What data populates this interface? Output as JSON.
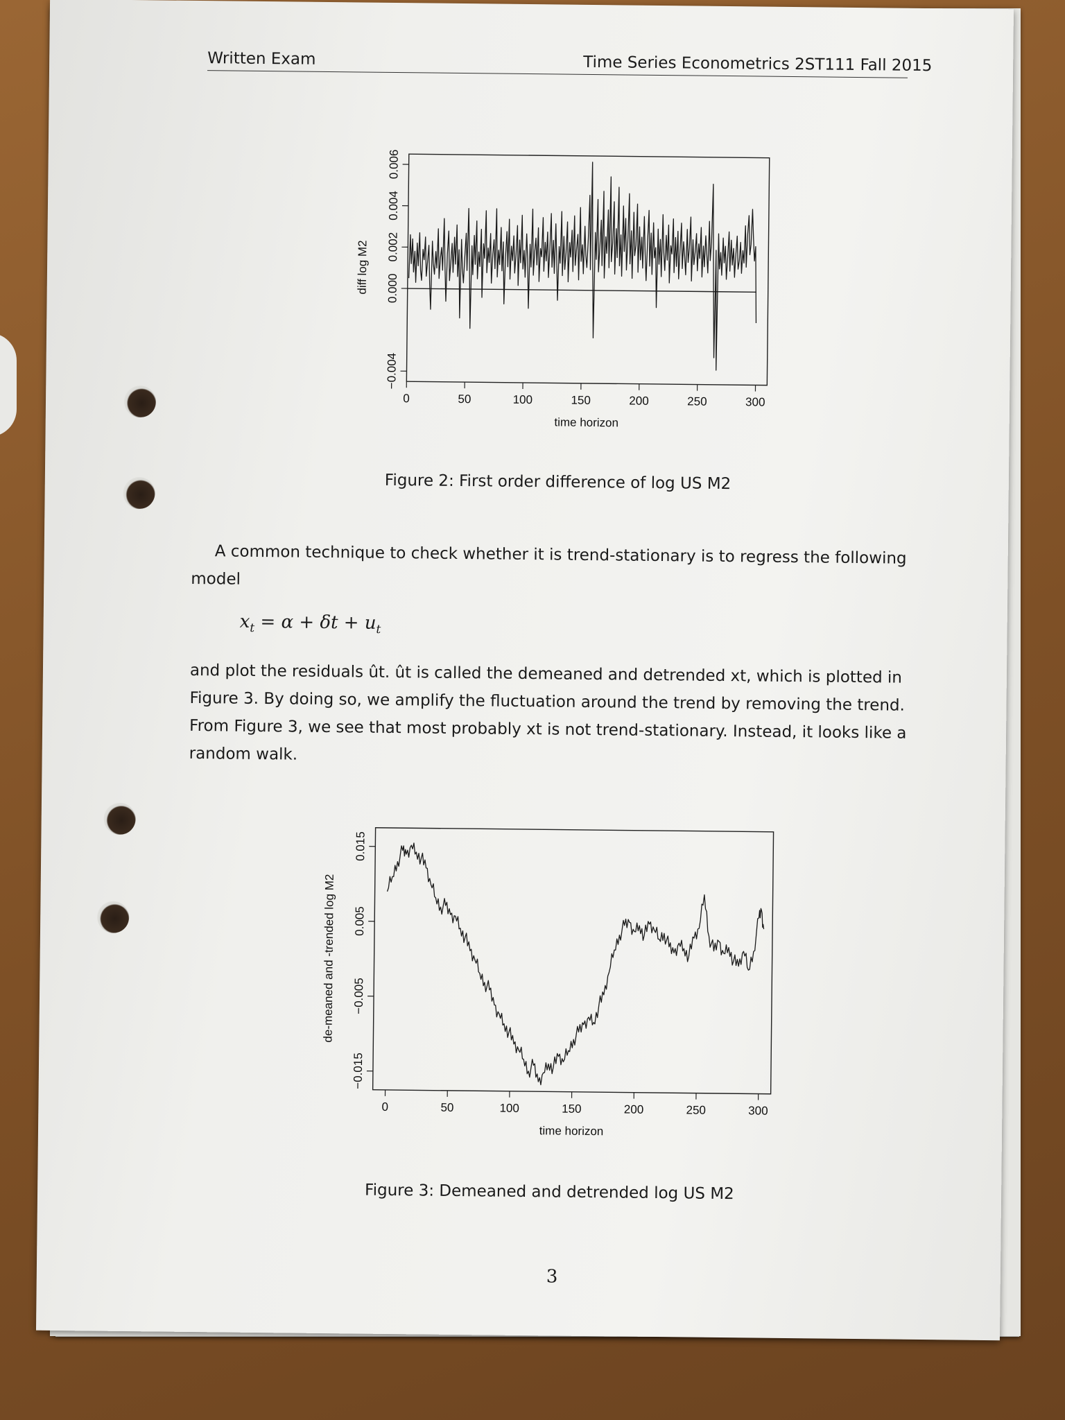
{
  "header": {
    "left": "Written Exam",
    "right": "Time Series Econometrics 2ST111 Fall 2015"
  },
  "figure2": {
    "caption": "Figure 2: First order difference of log US M2",
    "chart_data": {
      "type": "line",
      "xlabel": "time horizon",
      "ylabel": "diff log M2",
      "xlim": [
        0,
        310
      ],
      "ylim": [
        -0.0045,
        0.0065
      ],
      "x_ticks": [
        "0",
        "50",
        "100",
        "150",
        "200",
        "250",
        "300"
      ],
      "y_ticks": [
        "-0.004",
        "0.000",
        "0.002",
        "0.004",
        "0.006"
      ],
      "grid": false,
      "reference_line_y": 0,
      "series": [
        {
          "n": 300,
          "values": [
            0.0005,
            0.0026,
            0.0012,
            0.0024,
            0.0008,
            0.0018,
            0.0003,
            0.0022,
            0.0011,
            0.0027,
            0.0009,
            0.0004,
            0.0019,
            0.0014,
            0.0025,
            0.0006,
            0.0013,
            0.0021,
            0.0002,
            -0.001,
            0.0023,
            0.0012,
            0.0007,
            0.0018,
            0.001,
            0.0029,
            0.0005,
            0.0015,
            0.002,
            0.0009,
            0.0034,
            0.0011,
            -0.0006,
            0.0017,
            0.0028,
            0.0004,
            0.0013,
            0.0022,
            0.0008,
            0.0025,
            0.0012,
            0.0031,
            0.0006,
            0.0019,
            -0.0014,
            0.0024,
            0.001,
            0.0003,
            0.0016,
            0.0027,
            0.0009,
            0.0039,
            0.0014,
            -0.0019,
            0.0021,
            0.0007,
            0.0026,
            0.0012,
            0.0033,
            0.0005,
            0.0018,
            0.0011,
            0.0029,
            -0.0004,
            0.0022,
            0.0015,
            0.0038,
            0.0008,
            0.002,
            0.0013,
            0.0027,
            0.0003,
            0.0017,
            0.0024,
            0.001,
            0.0039,
            0.0006,
            0.0019,
            0.0012,
            0.003,
            0.0009,
            0.0023,
            -0.0007,
            0.0016,
            0.0028,
            0.0011,
            0.0034,
            0.0005,
            0.0021,
            0.0014,
            0.0026,
            0.0008,
            0.0017,
            0.0031,
            0.0002,
            0.0024,
            0.0013,
            0.0036,
            0.001,
            0.0019,
            0.0006,
            0.0027,
            0.0015,
            -0.0009,
            0.0022,
            0.0011,
            0.0039,
            0.0007,
            0.0018,
            0.0025,
            0.0012,
            0.003,
            0.0004,
            0.002,
            0.0016,
            0.0035,
            0.0009,
            0.0023,
            0.0014,
            0.0028,
            0.0006,
            0.0019,
            0.0037,
            0.0011,
            0.0024,
            0.0008,
            0.0032,
            0.0015,
            -0.0005,
            0.0021,
            0.0013,
            0.0038,
            0.0007,
            0.0026,
            0.001,
            0.0018,
            0.0033,
            0.0004,
            0.0023,
            0.0016,
            0.0029,
            0.0009,
            0.0036,
            0.0012,
            0.002,
            0.0027,
            0.0005,
            0.004,
            0.0014,
            0.0022,
            0.0008,
            0.0031,
            0.0017,
            0.0011,
            0.0025,
            0.0046,
            0.001,
            0.0062,
            0.0013,
            -0.0023,
            0.0028,
            0.0015,
            0.0044,
            0.0009,
            0.0021,
            0.0034,
            0.0012,
            0.0048,
            0.0006,
            0.0026,
            0.0018,
            0.0039,
            0.0011,
            0.0055,
            0.0014,
            0.0023,
            0.0043,
            0.0008,
            0.003,
            0.0016,
            0.005,
            0.0012,
            0.0027,
            0.0007,
            0.0041,
            0.0019,
            0.0035,
            0.001,
            0.0024,
            0.0047,
            0.0013,
            0.0029,
            0.0006,
            0.0038,
            0.0017,
            0.0022,
            0.0042,
            0.0009,
            0.0031,
            0.0015,
            0.0026,
            0.0011,
            0.0036,
            0.0018,
            0.0005,
            0.0024,
            0.0039,
            0.0012,
            0.0028,
            0.0008,
            0.0033,
            0.0016,
            0.0021,
            -0.0008,
            0.003,
            0.0013,
            0.0025,
            0.0007,
            0.0037,
            0.0019,
            0.001,
            0.0027,
            0.0015,
            0.0032,
            0.0004,
            0.0022,
            0.0018,
            0.0035,
            0.0009,
            0.0026,
            0.0012,
            0.0029,
            0.0006,
            0.002,
            0.0033,
            0.0011,
            0.0024,
            0.0017,
            0.0008,
            0.003,
            0.0014,
            0.0021,
            0.0036,
            0.0005,
            0.0025,
            0.0013,
            0.0019,
            0.0028,
            0.001,
            0.0023,
            0.0016,
            0.0031,
            0.0007,
            0.0022,
            0.0012,
            0.0027,
            0.0018,
            0.0009,
            0.0034,
            0.0015,
            0.0024,
            0.0052,
            0.0004,
            -0.0032,
            0.002,
            -0.0038,
            0.0028,
            0.0011,
            0.0019,
            0.0008,
            0.0026,
            0.0014,
            0.0022,
            0.0006,
            0.0017,
            0.0029,
            0.001,
            0.0025,
            0.0013,
            0.0021,
            0.0007,
            0.0018,
            0.0027,
            0.0011,
            0.0015,
            0.0024,
            0.0009,
            0.002,
            0.0014,
            0.0032,
            0.0012,
            0.0028,
            0.0037,
            0.0018,
            0.0023,
            0.004,
            0.0026,
            0.0015,
            0.0022,
            -0.0015
          ]
        }
      ]
    }
  },
  "paragraph1": {
    "line1": "A common technique to check whether it is trend-stationary is to regress the following",
    "line2": "model"
  },
  "equation": "xt = α + δt + ut",
  "paragraph2": {
    "line1": "and plot the residuals ût.  ût is called the demeaned and detrended xt, which is plotted in",
    "line2": "Figure 3.  By doing so, we amplify the fluctuation around the trend by removing the trend.",
    "line3": "From Figure 3, we see that most probably xt is not trend-stationary.  Instead, it looks like a",
    "line4": "random walk."
  },
  "figure3": {
    "caption": "Figure 3: Demeaned and detrended log US M2",
    "chart_data": {
      "type": "line",
      "xlabel": "time horizon",
      "ylabel": "de-meaned and -trended log M2",
      "xlim": [
        -10,
        310
      ],
      "ylim": [
        -0.0175,
        0.0175
      ],
      "x_ticks": [
        "0",
        "50",
        "100",
        "150",
        "200",
        "250",
        "300"
      ],
      "y_ticks": [
        "-0.015",
        "-0.005",
        "0.005",
        "0.015"
      ],
      "grid": false,
      "keypoints": [
        [
          0,
          0.009
        ],
        [
          4,
          0.011
        ],
        [
          8,
          0.013
        ],
        [
          12,
          0.0145
        ],
        [
          15,
          0.014
        ],
        [
          19,
          0.0152
        ],
        [
          23,
          0.0143
        ],
        [
          27,
          0.0135
        ],
        [
          31,
          0.0122
        ],
        [
          35,
          0.01
        ],
        [
          39,
          0.0082
        ],
        [
          43,
          0.007
        ],
        [
          47,
          0.0072
        ],
        [
          51,
          0.006
        ],
        [
          55,
          0.0058
        ],
        [
          59,
          0.0042
        ],
        [
          63,
          0.003
        ],
        [
          67,
          0.0012
        ],
        [
          71,
          0.0
        ],
        [
          75,
          -0.0018
        ],
        [
          79,
          -0.003
        ],
        [
          83,
          -0.004
        ],
        [
          87,
          -0.006
        ],
        [
          91,
          -0.0072
        ],
        [
          95,
          -0.0085
        ],
        [
          99,
          -0.0096
        ],
        [
          103,
          -0.0112
        ],
        [
          107,
          -0.012
        ],
        [
          111,
          -0.0132
        ],
        [
          115,
          -0.0148
        ],
        [
          119,
          -0.014
        ],
        [
          123,
          -0.0162
        ],
        [
          127,
          -0.015
        ],
        [
          131,
          -0.0138
        ],
        [
          135,
          -0.0142
        ],
        [
          139,
          -0.0128
        ],
        [
          143,
          -0.0135
        ],
        [
          147,
          -0.012
        ],
        [
          151,
          -0.0105
        ],
        [
          155,
          -0.0095
        ],
        [
          159,
          -0.0085
        ],
        [
          163,
          -0.0075
        ],
        [
          167,
          -0.0082
        ],
        [
          171,
          -0.006
        ],
        [
          175,
          -0.0045
        ],
        [
          179,
          -0.0015
        ],
        [
          183,
          0.0015
        ],
        [
          187,
          0.0035
        ],
        [
          191,
          0.0048
        ],
        [
          195,
          0.0052
        ],
        [
          199,
          0.004
        ],
        [
          203,
          0.0048
        ],
        [
          207,
          0.0035
        ],
        [
          211,
          0.005
        ],
        [
          215,
          0.0042
        ],
        [
          219,
          0.003
        ],
        [
          223,
          0.0038
        ],
        [
          227,
          0.002
        ],
        [
          231,
          0.0012
        ],
        [
          235,
          0.0025
        ],
        [
          239,
          0.0018
        ],
        [
          243,
          0.0008
        ],
        [
          247,
          0.0032
        ],
        [
          251,
          0.0045
        ],
        [
          255,
          0.009
        ],
        [
          259,
          0.0035
        ],
        [
          263,
          0.0015
        ],
        [
          267,
          0.0028
        ],
        [
          271,
          0.0012
        ],
        [
          275,
          0.002
        ],
        [
          279,
          0.0002
        ],
        [
          283,
          -0.0005
        ],
        [
          287,
          0.0015
        ],
        [
          291,
          -0.001
        ],
        [
          295,
          0.0015
        ],
        [
          299,
          0.006
        ],
        [
          301,
          0.007
        ],
        [
          303,
          0.0045
        ]
      ]
    }
  },
  "page_number": "3"
}
